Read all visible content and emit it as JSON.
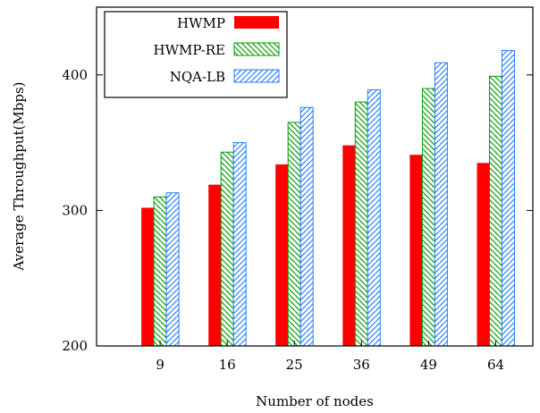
{
  "chart_data": {
    "type": "bar",
    "xlabel": "Number of nodes",
    "ylabel": "Average Throughput(Mbps)",
    "categories": [
      "9",
      "16",
      "25",
      "36",
      "49",
      "64"
    ],
    "ylim": [
      200,
      450
    ],
    "yticks": [
      200,
      300,
      400
    ],
    "grid": false,
    "legend_position": "top-left",
    "series": [
      {
        "name": "HWMP",
        "values": [
          302,
          319,
          334,
          348,
          341,
          335
        ],
        "color": "#ff0000",
        "pattern": "solid"
      },
      {
        "name": "HWMP-RE",
        "values": [
          310,
          343,
          365,
          380,
          390,
          399
        ],
        "color": "#00a000",
        "pattern": "hatch-back"
      },
      {
        "name": "NQA-LB",
        "values": [
          313,
          350,
          376,
          389,
          409,
          418
        ],
        "color": "#2a7fff",
        "pattern": "hatch-forward"
      }
    ]
  }
}
